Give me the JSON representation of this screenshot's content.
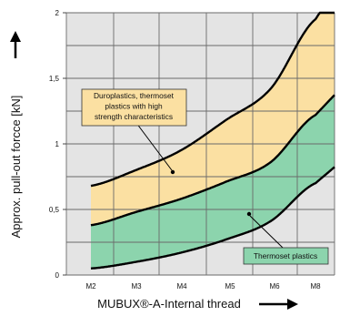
{
  "chart_data": {
    "type": "area",
    "title": "",
    "xlabel": "MUBUX®-A-Internal thread",
    "ylabel": "Approx. pull-out forcce  [kN]",
    "categories": [
      "M2",
      "M3",
      "M4",
      "M5",
      "M6",
      "M8"
    ],
    "ylim": [
      0,
      2
    ],
    "yticks": [
      "0",
      "0,5",
      "1",
      "1,5",
      "2"
    ],
    "grid": true,
    "series": [
      {
        "name": "Duroplastics, thermoset plastics with high strength characteristics",
        "lower": [
          0.38,
          0.48,
          0.58,
          0.71,
          0.86,
          1.22
        ],
        "upper": [
          0.68,
          0.8,
          0.95,
          1.18,
          1.42,
          1.95
        ],
        "color": "#fbe0a2"
      },
      {
        "name": "Thermoset plastics",
        "lower": [
          0.05,
          0.1,
          0.17,
          0.27,
          0.41,
          0.7
        ],
        "upper": [
          0.38,
          0.48,
          0.58,
          0.71,
          0.86,
          1.22
        ],
        "color": "#8cd4ad"
      }
    ],
    "annotations": [
      {
        "lines": [
          "Duroplastics, thermoset",
          "plastics with high",
          "strength characteristics"
        ]
      },
      {
        "lines": [
          "Thermoset plastics"
        ]
      }
    ],
    "colors": {
      "plot_bg": "#e4e4e4",
      "grid": "#6a6a6a",
      "curve": "#000000"
    }
  }
}
